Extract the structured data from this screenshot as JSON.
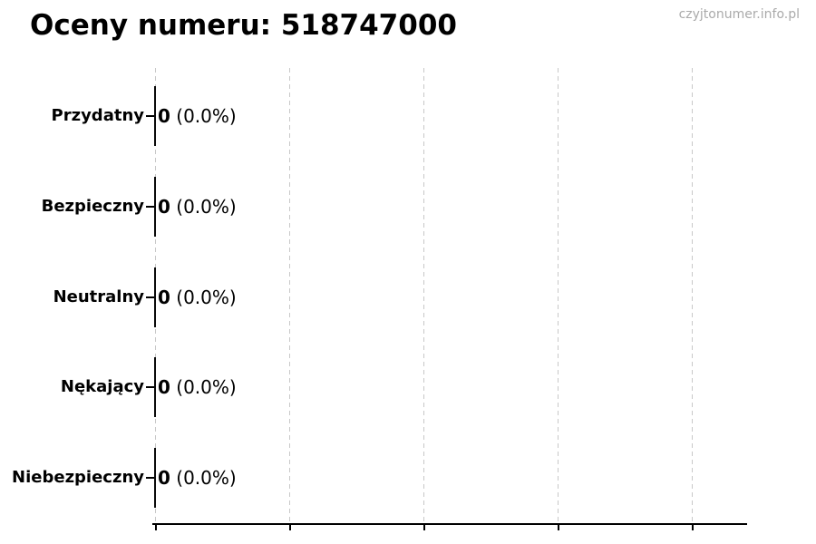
{
  "watermark": "czyjtonumer.info.pl",
  "chart_data": {
    "type": "bar",
    "orientation": "horizontal",
    "title": "Oceny numeru: 518747000",
    "categories": [
      "Przydatny",
      "Bezpieczny",
      "Neutralny",
      "Nękający",
      "Niebezpieczny"
    ],
    "values": [
      0,
      0,
      0,
      0,
      0
    ],
    "percent_labels": [
      "(0.0%)",
      "(0.0%)",
      "(0.0%)",
      "(0.0%)",
      "(0.0%)"
    ],
    "xlabel": "",
    "ylabel": "",
    "x_ticks_labeled": false,
    "gridline_count": 5,
    "grid": true,
    "legend": false,
    "colors": {
      "bar": "#0a0a0a",
      "grid": "#c8c8c8",
      "axis": "#000000",
      "text": "#000000",
      "watermark": "#aaaaaa"
    }
  }
}
